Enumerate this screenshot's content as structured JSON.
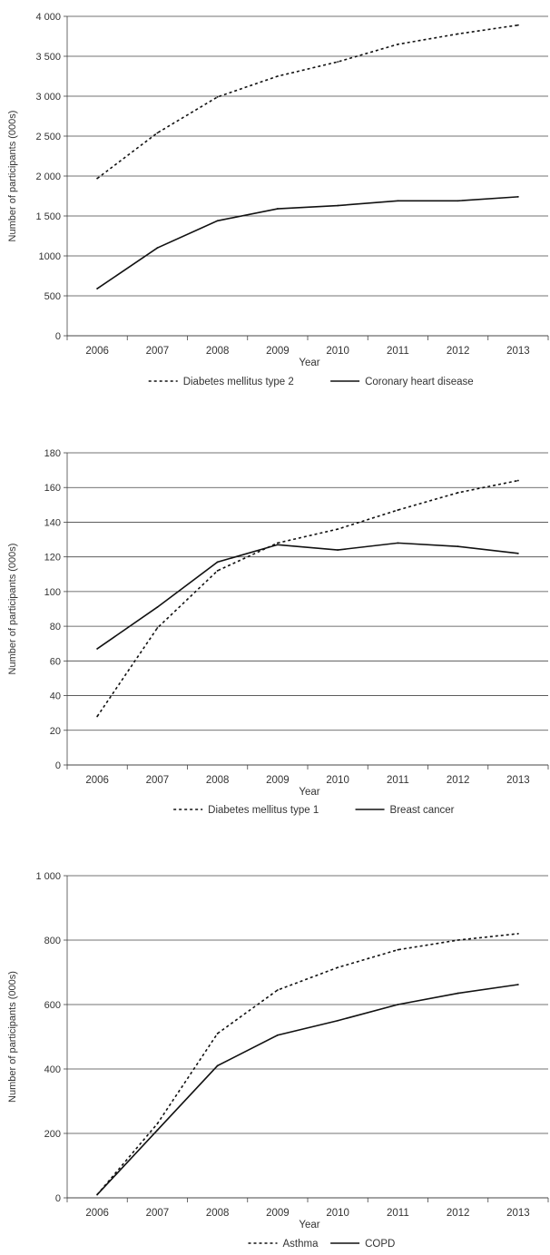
{
  "chart_data": [
    {
      "type": "line",
      "xlabel": "Year",
      "ylabel": "Number of participants (000s)",
      "categories": [
        "2006",
        "2007",
        "2008",
        "2009",
        "2010",
        "2011",
        "2012",
        "2013"
      ],
      "ylim": [
        0,
        4000
      ],
      "ytick_values": [
        0,
        500,
        1000,
        1500,
        2000,
        2500,
        3000,
        3500,
        4000
      ],
      "ytick_labels": [
        "0",
        "500",
        "1000",
        "1 500",
        "2 000",
        "2 500",
        "3 000",
        "3 500",
        "4 000"
      ],
      "grid": "horizontal",
      "legend": "bottom",
      "series": [
        {
          "name": "Diabetes mellitus type 2",
          "style": "dashed",
          "values": [
            1970,
            2540,
            2990,
            3250,
            3430,
            3650,
            3780,
            3890
          ]
        },
        {
          "name": "Coronary heart disease",
          "style": "solid",
          "values": [
            590,
            1100,
            1440,
            1590,
            1630,
            1690,
            1690,
            1740
          ]
        }
      ]
    },
    {
      "type": "line",
      "xlabel": "Year",
      "ylabel": "Number of participants (000s)",
      "categories": [
        "2006",
        "2007",
        "2008",
        "2009",
        "2010",
        "2011",
        "2012",
        "2013"
      ],
      "ylim": [
        0,
        180
      ],
      "ytick_values": [
        0,
        20,
        40,
        60,
        80,
        100,
        120,
        140,
        160,
        180
      ],
      "ytick_labels": [
        "0",
        "20",
        "40",
        "60",
        "80",
        "100",
        "120",
        "140",
        "160",
        "180"
      ],
      "grid": "horizontal",
      "legend": "bottom",
      "series": [
        {
          "name": "Diabetes mellitus type 1",
          "style": "dashed",
          "values": [
            28,
            79,
            112,
            128,
            136,
            147,
            157,
            164
          ]
        },
        {
          "name": "Breast cancer",
          "style": "solid",
          "values": [
            67,
            91,
            117,
            127,
            124,
            128,
            126,
            122
          ]
        }
      ]
    },
    {
      "type": "line",
      "xlabel": "Year",
      "ylabel": "Number of participants (000s)",
      "categories": [
        "2006",
        "2007",
        "2008",
        "2009",
        "2010",
        "2011",
        "2012",
        "2013"
      ],
      "ylim": [
        0,
        1000
      ],
      "ytick_values": [
        0,
        200,
        400,
        600,
        800,
        1000
      ],
      "ytick_labels": [
        "0",
        "200",
        "400",
        "600",
        "800",
        "1 000"
      ],
      "grid": "horizontal",
      "legend": "bottom",
      "series": [
        {
          "name": "Asthma",
          "style": "dashed",
          "values": [
            10,
            230,
            510,
            645,
            715,
            770,
            800,
            820
          ]
        },
        {
          "name": "COPD",
          "style": "solid",
          "values": [
            10,
            210,
            410,
            505,
            550,
            600,
            635,
            662
          ]
        }
      ]
    }
  ]
}
